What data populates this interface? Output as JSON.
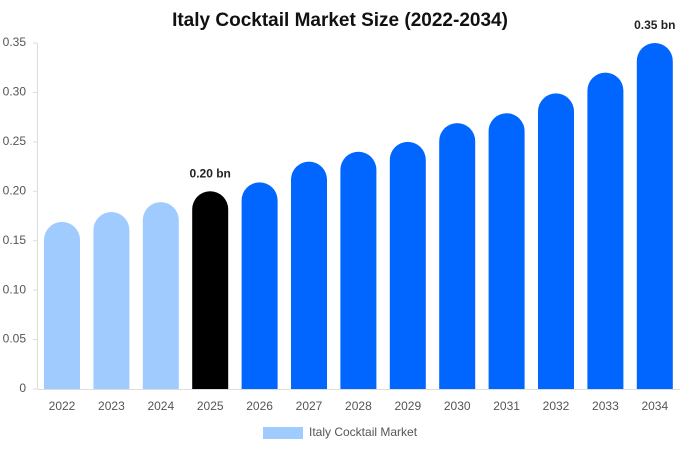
{
  "chart_data": {
    "type": "bar",
    "title": "Italy Cocktail Market Size (2022-2034)",
    "categories": [
      "2022",
      "2023",
      "2024",
      "2025",
      "2026",
      "2027",
      "2028",
      "2029",
      "2030",
      "2031",
      "2032",
      "2033",
      "2034"
    ],
    "series": [
      {
        "name": "Italy Cocktail Market",
        "color": "#a0cbff",
        "values": [
          0.169,
          0.179,
          0.189,
          0.2,
          0.209,
          0.23,
          0.24,
          0.25,
          0.269,
          0.279,
          0.299,
          0.32,
          0.35
        ],
        "value_labels": [
          null,
          null,
          null,
          "0.20 bn",
          null,
          null,
          null,
          null,
          null,
          null,
          null,
          null,
          "0.35 bn"
        ],
        "colors": [
          "#a0cbff",
          "#a0cbff",
          "#a0cbff",
          "#000000",
          "#0066ff",
          "#0066ff",
          "#0066ff",
          "#0066ff",
          "#0066ff",
          "#0066ff",
          "#0066ff",
          "#0066ff",
          "#0066ff"
        ]
      }
    ],
    "ylim": [
      0,
      0.35
    ],
    "yticks": [
      0,
      0.05,
      {
        "value": 0.1,
        "label": "0.10"
      },
      0.15,
      {
        "value": 0.2,
        "label": "0.20"
      },
      0.25,
      {
        "value": 0.3,
        "label": "0.30"
      },
      0.35
    ],
    "grid": false,
    "legend": "bottom"
  }
}
